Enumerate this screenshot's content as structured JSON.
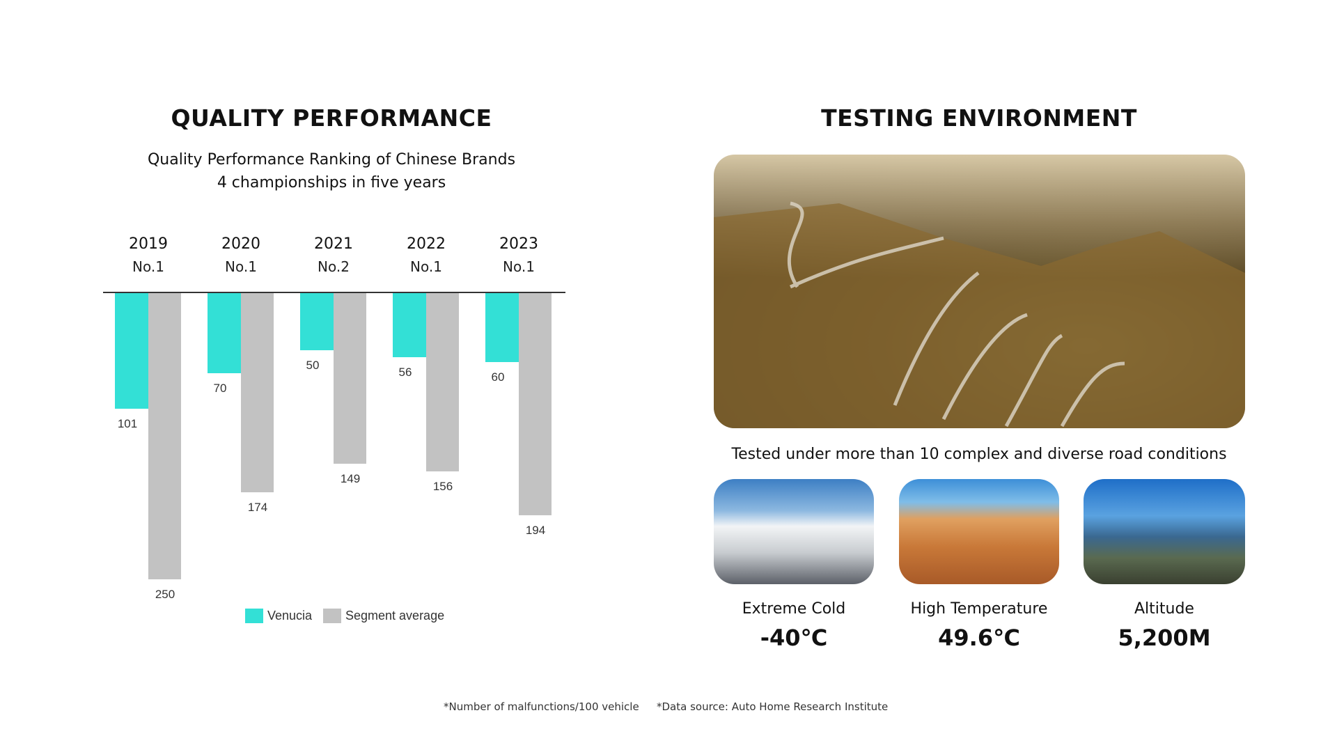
{
  "left": {
    "title": "QUALITY PERFORMANCE",
    "subtitle_line1": "Quality Performance Ranking of Chinese Brands",
    "subtitle_line2": "4 championships in five years"
  },
  "right": {
    "title": "TESTING ENVIRONMENT",
    "caption": "Tested under more than 10 complex and diverse road conditions",
    "conditions": [
      {
        "label": "Extreme Cold",
        "value": "-40℃"
      },
      {
        "label": "High Temperature",
        "value": "49.6℃"
      },
      {
        "label": "Altitude",
        "value": "5,200M"
      }
    ]
  },
  "chart_data": {
    "type": "bar",
    "orientation": "downward",
    "categories": [
      "2019",
      "2020",
      "2021",
      "2022",
      "2023"
    ],
    "rankings": [
      "No.1",
      "No.1",
      "No.2",
      "No.1",
      "No.1"
    ],
    "series": [
      {
        "name": "Venucia",
        "color": "#33e0d6",
        "values": [
          101,
          70,
          50,
          56,
          60
        ]
      },
      {
        "name": "Segment average",
        "color": "#c2c2c2",
        "values": [
          250,
          174,
          149,
          156,
          194
        ]
      }
    ],
    "ylim": [
      0,
      250
    ],
    "grid": false,
    "legend": "bottom"
  },
  "footnotes": {
    "note1": "*Number of malfunctions/100 vehicle",
    "note2": "*Data source: Auto Home Research Institute"
  }
}
